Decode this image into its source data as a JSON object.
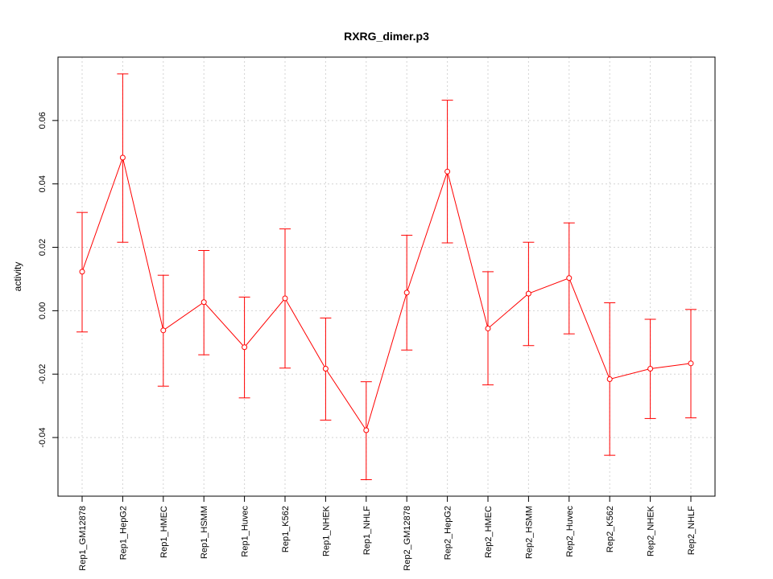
{
  "chart_data": {
    "type": "line",
    "title": "RXRG_dimer.p3",
    "xlabel": "",
    "ylabel": "activity",
    "categories": [
      "Rep1_GM12878",
      "Rep1_HepG2",
      "Rep1_HMEC",
      "Rep1_HSMM",
      "Rep1_Huvec",
      "Rep1_K562",
      "Rep1_NHEK",
      "Rep1_NHLF",
      "Rep2_GM12878",
      "Rep2_HepG2",
      "Rep2_HMEC",
      "Rep2_HSMM",
      "Rep2_Huvec",
      "Rep2_K562",
      "Rep2_NHEK",
      "Rep2_NHLF"
    ],
    "series": [
      {
        "values": [
          0.0123,
          0.0483,
          -0.0062,
          0.0027,
          -0.0115,
          0.0039,
          -0.0183,
          -0.0377,
          0.0057,
          0.0439,
          -0.0056,
          0.0054,
          0.0103,
          -0.0216,
          -0.0183,
          -0.0166
        ],
        "upper": [
          0.031,
          0.0747,
          0.0112,
          0.019,
          0.0043,
          0.0258,
          -0.0023,
          -0.0224,
          0.0238,
          0.0664,
          0.0123,
          0.0216,
          0.0277,
          0.0025,
          -0.0027,
          0.0004
        ],
        "lower": [
          -0.0067,
          0.0216,
          -0.0238,
          -0.0139,
          -0.0275,
          -0.0181,
          -0.0345,
          -0.0533,
          -0.0124,
          0.0214,
          -0.0234,
          -0.011,
          -0.0073,
          -0.0456,
          -0.034,
          -0.0338
        ],
        "color": "#ff0000"
      }
    ],
    "yticks": [
      -0.04,
      -0.02,
      0.0,
      0.02,
      0.04,
      0.06
    ],
    "ytick_labels": [
      "-0.04",
      "-0.02",
      "0.00",
      "0.02",
      "0.04",
      "0.06"
    ],
    "ylim": [
      -0.0585,
      0.08
    ],
    "grid": true,
    "legend": "none"
  }
}
